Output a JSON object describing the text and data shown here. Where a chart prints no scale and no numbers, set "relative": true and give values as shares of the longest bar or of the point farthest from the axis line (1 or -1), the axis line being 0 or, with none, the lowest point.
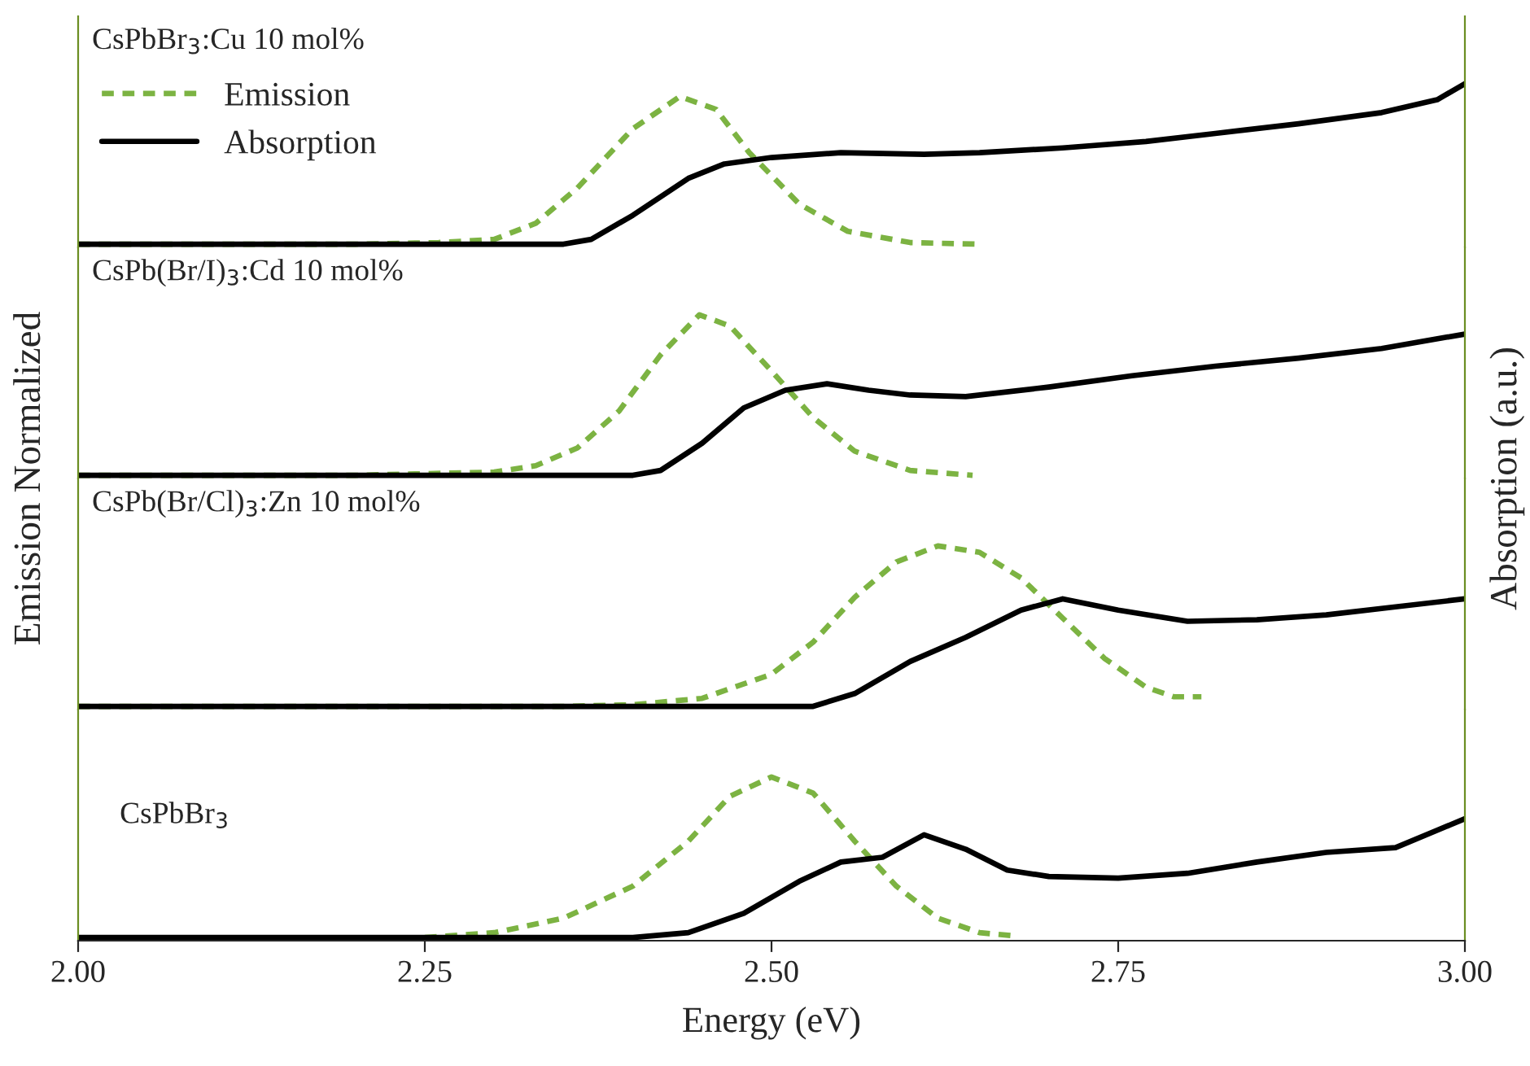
{
  "chart_data": [
    {
      "type": "line",
      "title": "CsPbBr$_{3}$:Cu 10 mol%",
      "ylabel": "Emission Normalized",
      "y2label": "Absorption (a.u.)",
      "relative": true,
      "xlim": [
        2.0,
        3.0
      ],
      "tick_labels": false,
      "legend": "top left",
      "series": [
        {
          "name": "Emission",
          "color": "#7cb342",
          "line_style": "dashed",
          "x": [
            2.0,
            2.2,
            2.26,
            2.3,
            2.33,
            2.36,
            2.4,
            2.434,
            2.46,
            2.484,
            2.52,
            2.555,
            2.6,
            2.65
          ],
          "values": [
            0,
            0,
            0.01,
            0.03,
            0.13,
            0.35,
            0.72,
            0.92,
            0.84,
            0.57,
            0.25,
            0.08,
            0.01,
            0
          ]
        },
        {
          "name": "Absorption",
          "color": "#000000",
          "line_style": "solid",
          "x": [
            2.0,
            2.35,
            2.37,
            2.4,
            2.44,
            2.466,
            2.5,
            2.55,
            2.61,
            2.65,
            2.71,
            2.77,
            2.82,
            2.88,
            2.94,
            2.98,
            3.0
          ],
          "values": [
            0,
            0,
            0.03,
            0.18,
            0.41,
            0.5,
            0.54,
            0.57,
            0.56,
            0.57,
            0.6,
            0.64,
            0.69,
            0.75,
            0.82,
            0.9,
            1.0
          ]
        }
      ]
    },
    {
      "type": "line",
      "title": "CsPb(Br/I)$_{3}$:Cd 10 mol%",
      "relative": true,
      "xlim": [
        2.0,
        3.0
      ],
      "tick_labels": false,
      "series": [
        {
          "color": "#7cb342",
          "line_style": "dashed",
          "x": [
            2.0,
            2.2,
            2.3,
            2.33,
            2.36,
            2.39,
            2.42,
            2.448,
            2.47,
            2.5,
            2.53,
            2.56,
            2.6,
            2.645
          ],
          "values": [
            0,
            0,
            0.02,
            0.06,
            0.17,
            0.4,
            0.75,
            1.0,
            0.93,
            0.65,
            0.36,
            0.15,
            0.03,
            0
          ]
        },
        {
          "color": "#000000",
          "line_style": "solid",
          "x": [
            2.0,
            2.4,
            2.42,
            2.45,
            2.48,
            2.51,
            2.54,
            2.57,
            2.6,
            2.64,
            2.7,
            2.76,
            2.82,
            2.88,
            2.94,
            3.0
          ],
          "values": [
            0,
            0,
            0.03,
            0.2,
            0.42,
            0.53,
            0.57,
            0.53,
            0.5,
            0.49,
            0.55,
            0.62,
            0.68,
            0.73,
            0.79,
            0.88
          ]
        }
      ]
    },
    {
      "type": "line",
      "title": "CsPb(Br/Cl)$_{3}$:Zn 10 mol%",
      "relative": true,
      "xlim": [
        2.0,
        3.0
      ],
      "tick_labels": false,
      "series": [
        {
          "color": "#7cb342",
          "line_style": "dashed",
          "x": [
            2.0,
            2.35,
            2.4,
            2.45,
            2.5,
            2.53,
            2.56,
            2.59,
            2.62,
            2.65,
            2.68,
            2.71,
            2.74,
            2.77,
            2.79,
            2.81
          ],
          "values": [
            0,
            0,
            0.01,
            0.05,
            0.2,
            0.4,
            0.68,
            0.9,
            1.0,
            0.96,
            0.8,
            0.55,
            0.3,
            0.12,
            0.06,
            0.06
          ]
        },
        {
          "color": "#000000",
          "line_style": "solid",
          "x": [
            2.0,
            2.53,
            2.56,
            2.6,
            2.64,
            2.68,
            2.71,
            2.75,
            2.8,
            2.85,
            2.9,
            2.95,
            3.0
          ],
          "values": [
            0,
            0,
            0.08,
            0.28,
            0.43,
            0.6,
            0.67,
            0.6,
            0.53,
            0.54,
            0.57,
            0.62,
            0.67
          ]
        }
      ]
    },
    {
      "type": "line",
      "title": "CsPbBr$_{3}$",
      "xlabel": "Energy (eV)",
      "relative": true,
      "xlim": [
        2.0,
        3.0
      ],
      "xticks": [
        {
          "value": 2.0,
          "label": "2.00"
        },
        {
          "value": 2.25,
          "label": "2.25"
        },
        {
          "value": 2.5,
          "label": "2.50"
        },
        {
          "value": 2.75,
          "label": "2.75"
        },
        {
          "value": 3.0,
          "label": "3.00"
        }
      ],
      "tick_labels": "x",
      "series": [
        {
          "color": "#7cb342",
          "line_style": "dashed",
          "x": [
            2.25,
            2.3,
            2.35,
            2.4,
            2.44,
            2.47,
            2.5,
            2.53,
            2.56,
            2.59,
            2.62,
            2.65,
            2.675
          ],
          "values": [
            0,
            0.03,
            0.12,
            0.32,
            0.6,
            0.88,
            1.0,
            0.9,
            0.6,
            0.32,
            0.12,
            0.03,
            0.01
          ]
        },
        {
          "color": "#000000",
          "line_style": "solid",
          "x": [
            2.0,
            2.4,
            2.44,
            2.48,
            2.52,
            2.55,
            2.58,
            2.61,
            2.64,
            2.67,
            2.7,
            2.75,
            2.8,
            2.85,
            2.9,
            2.95,
            3.0
          ],
          "values": [
            0,
            0,
            0.03,
            0.15,
            0.35,
            0.47,
            0.5,
            0.64,
            0.55,
            0.42,
            0.38,
            0.37,
            0.4,
            0.47,
            0.53,
            0.56,
            0.74
          ]
        }
      ]
    }
  ]
}
